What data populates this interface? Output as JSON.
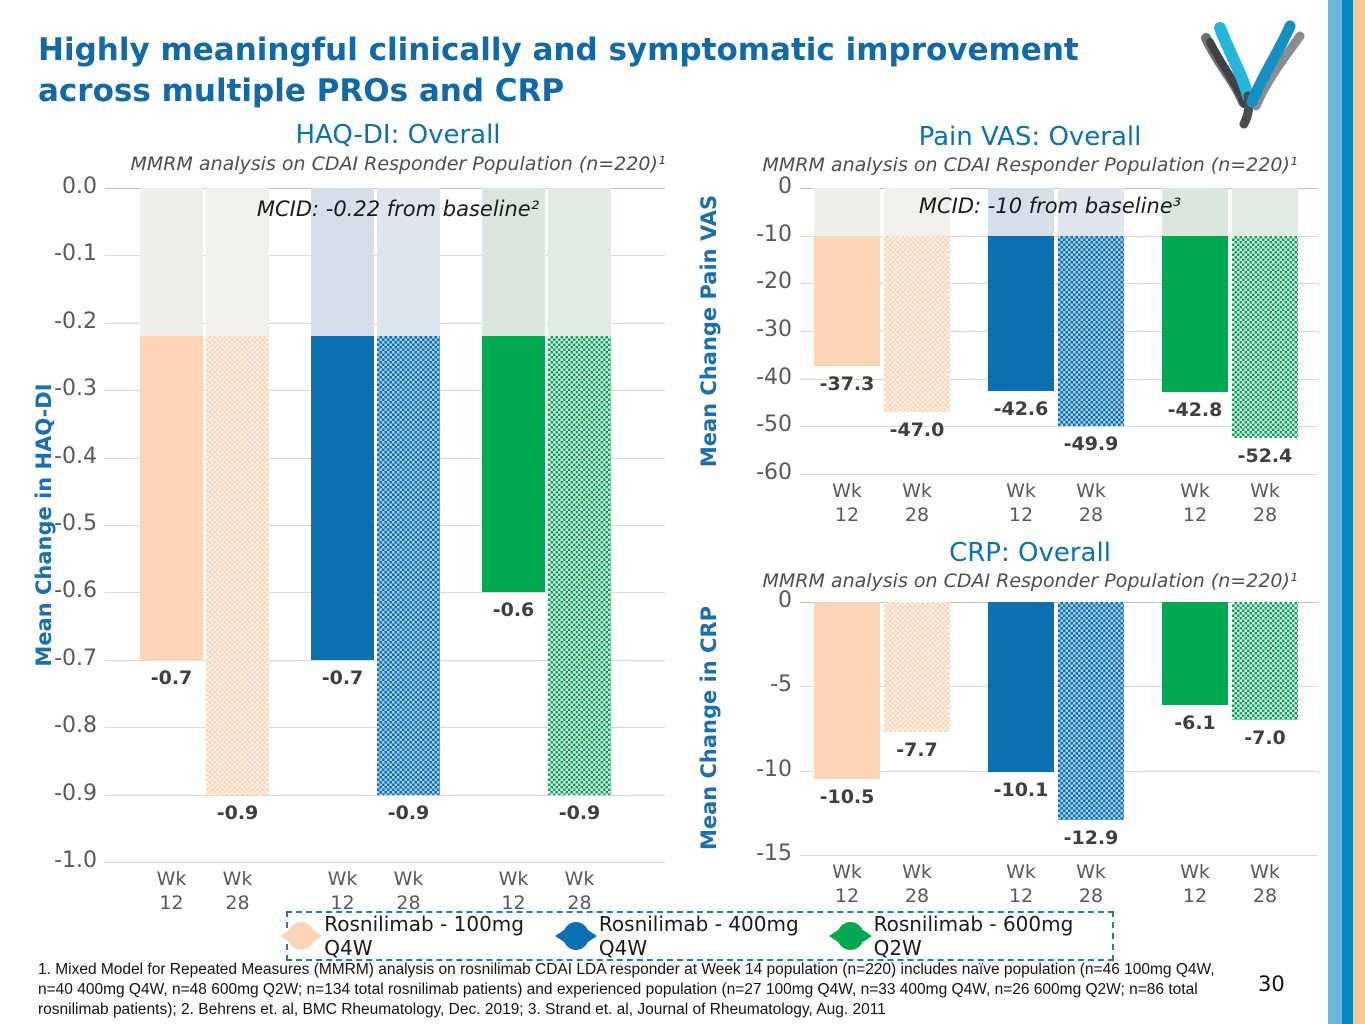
{
  "page": {
    "title": "Highly meaningful clinically and symptomatic improvement\nacross multiple PROs and CRP",
    "page_number": "30",
    "footnote": "1. Mixed Model for Repeated Measures (MMRM) analysis on rosnilimab CDAI LDA responder at Week 14 population (n=220) includes naïve population (n=46 100mg Q4W, n=40 400mg Q4W, n=48 600mg Q2W; n=134 total rosnilimab patients) and experienced population (n=27 100mg Q4W, n=33 400mg Q4W, n=26 600mg Q2W; n=86 total rosnilimab patients); 2. Behrens et. al, BMC Rheumatology, Dec. 2019; 3. Strand et. al, Journal of Rheumatology, Aug. 2011"
  },
  "colors": {
    "title_blue": "#1269A8",
    "chart_title_blue": "#0C70B5",
    "axis_label_blue": "#1B6FAF",
    "tick_gray": "#595959",
    "grid_gray": "#D9D9D9",
    "value_label": "#3F3F3F",
    "legend_border": "#2E75B6",
    "stripe_light_blue": "#6CB8DC",
    "stripe_dark_blue": "#0A87C1",
    "stripe_peach": "#F5C897"
  },
  "legend": {
    "items": [
      {
        "label": "Rosnilimab - 100mg Q4W",
        "color": "#FBD5B5",
        "hatch_bg": "#FEF3EA"
      },
      {
        "label": "Rosnilimab - 400mg Q4W",
        "color": "#0B70B2",
        "hatch_bg": "#A9CFE9"
      },
      {
        "label": "Rosnilimab - 600mg Q2W",
        "color": "#00A94F",
        "hatch_bg": "#F0FAF4"
      }
    ]
  },
  "chart_data": [
    {
      "id": "haq-di",
      "type": "bar",
      "title": "HAQ-DI: Overall",
      "subtitle": "MMRM analysis on CDAI Responder Population (n=220)¹",
      "ylabel": "Mean Change in HAQ-DI",
      "annotation": "MCID: -0.22 from baseline²",
      "mcid": -0.22,
      "ylim": [
        0,
        -1.0
      ],
      "ytick_values": [
        0,
        -0.1,
        -0.2,
        -0.3,
        -0.4,
        -0.5,
        -0.6,
        -0.7,
        -0.8,
        -0.9,
        -1.0
      ],
      "ytick_labels": [
        "0.0",
        "-0.1",
        "-0.2",
        "-0.3",
        "-0.4",
        "-0.5",
        "-0.6",
        "-0.7",
        "-0.8",
        "-0.9",
        "-1.0"
      ],
      "categories": [
        "Wk\n12",
        "Wk\n28",
        "Wk\n12",
        "Wk\n28",
        "Wk\n12",
        "Wk\n28"
      ],
      "series_names": [
        "Rosnilimab - 100mg Q4W",
        "Rosnilimab - 400mg Q4W",
        "Rosnilimab - 600mg Q2W"
      ],
      "series_of_bar": [
        0,
        0,
        1,
        1,
        2,
        2
      ],
      "pattern": [
        "solid",
        "hatch",
        "solid",
        "hatch",
        "solid",
        "hatch"
      ],
      "values": [
        -0.7,
        -0.9,
        -0.7,
        -0.9,
        -0.6,
        -0.9
      ],
      "labels": [
        "-0.7",
        "-0.9",
        "-0.7",
        "-0.9",
        "-0.6",
        "-0.9"
      ],
      "mcid_tints": [
        "#F0EEE9",
        "#F2F0EB",
        "#D5DFE9",
        "#DEE5EC",
        "#D9E7DD",
        "#E1EAE3"
      ],
      "grid": true,
      "legend_position": "shared-bottom"
    },
    {
      "id": "pain-vas",
      "type": "bar",
      "title": "Pain VAS: Overall",
      "subtitle": "MMRM analysis on CDAI Responder Population (n=220)¹",
      "ylabel": "Mean Change Pain VAS",
      "annotation": "MCID: -10 from baseline³",
      "mcid": -10,
      "ylim": [
        0,
        -60
      ],
      "ytick_values": [
        0,
        -10,
        -20,
        -30,
        -40,
        -50,
        -60
      ],
      "ytick_labels": [
        "0",
        "-10",
        "-20",
        "-30",
        "-40",
        "-50",
        "-60"
      ],
      "categories": [
        "Wk\n12",
        "Wk\n28",
        "Wk\n12",
        "Wk\n28",
        "Wk\n12",
        "Wk\n28"
      ],
      "series_names": [
        "Rosnilimab - 100mg Q4W",
        "Rosnilimab - 400mg Q4W",
        "Rosnilimab - 600mg Q2W"
      ],
      "series_of_bar": [
        0,
        0,
        1,
        1,
        2,
        2
      ],
      "pattern": [
        "solid",
        "hatch",
        "solid",
        "hatch",
        "solid",
        "hatch"
      ],
      "values": [
        -37.3,
        -47.0,
        -42.6,
        -49.9,
        -42.8,
        -52.4
      ],
      "labels": [
        "-37.3",
        "-47.0",
        "-42.6",
        "-49.9",
        "-42.8",
        "-52.4"
      ],
      "mcid_tints": [
        "#F0EEE9",
        "#F2F0EB",
        "#D5DFE9",
        "#DEE5EC",
        "#D9E7DD",
        "#E1EAE3"
      ],
      "grid": true,
      "legend_position": "shared-bottom"
    },
    {
      "id": "crp",
      "type": "bar",
      "title": "CRP: Overall",
      "subtitle": "MMRM analysis on CDAI Responder Population (n=220)¹",
      "ylabel": "Mean Change in CRP",
      "annotation": null,
      "mcid": null,
      "ylim": [
        0,
        -15
      ],
      "ytick_values": [
        0,
        -5,
        -10,
        -15
      ],
      "ytick_labels": [
        "0",
        "-5",
        "-10",
        "-15"
      ],
      "categories": [
        "Wk\n12",
        "Wk\n28",
        "Wk\n12",
        "Wk\n28",
        "Wk\n12",
        "Wk\n28"
      ],
      "series_names": [
        "Rosnilimab - 100mg Q4W",
        "Rosnilimab - 400mg Q4W",
        "Rosnilimab - 600mg Q2W"
      ],
      "series_of_bar": [
        0,
        0,
        1,
        1,
        2,
        2
      ],
      "pattern": [
        "solid",
        "hatch",
        "solid",
        "hatch",
        "solid",
        "hatch"
      ],
      "values": [
        -10.5,
        -7.7,
        -10.1,
        -12.9,
        -6.1,
        -7.0
      ],
      "labels": [
        "-10.5",
        "-7.7",
        "-10.1",
        "-12.9",
        "-6.1",
        "-7.0"
      ],
      "mcid_tints": null,
      "grid": true,
      "legend_position": "shared-bottom"
    }
  ]
}
